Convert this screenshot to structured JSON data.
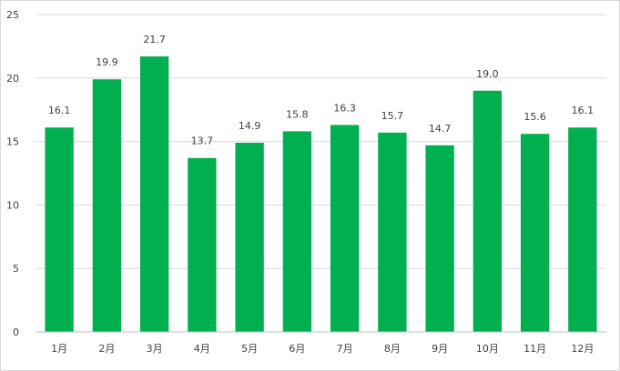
{
  "chart_data": {
    "type": "bar",
    "title": "",
    "xlabel": "",
    "ylabel": "",
    "categories": [
      "1月",
      "2月",
      "3月",
      "4月",
      "5月",
      "6月",
      "7月",
      "8月",
      "9月",
      "10月",
      "11月",
      "12月"
    ],
    "values": [
      16.1,
      19.9,
      21.7,
      13.7,
      14.9,
      15.8,
      16.3,
      15.7,
      14.7,
      19.0,
      15.6,
      16.1
    ],
    "value_labels": [
      "16.1",
      "19.9",
      "21.7",
      "13.7",
      "14.9",
      "15.8",
      "16.3",
      "15.7",
      "14.7",
      "19.0",
      "15.6",
      "16.1"
    ],
    "ylim": [
      0,
      25
    ],
    "yticks": [
      0,
      5,
      10,
      15,
      20,
      25
    ],
    "grid": true,
    "legend": "none",
    "colors": {
      "bar": "#00b050",
      "grid": "#d9d9d9",
      "axis": "#bfbfbf",
      "text": "#404040"
    }
  }
}
